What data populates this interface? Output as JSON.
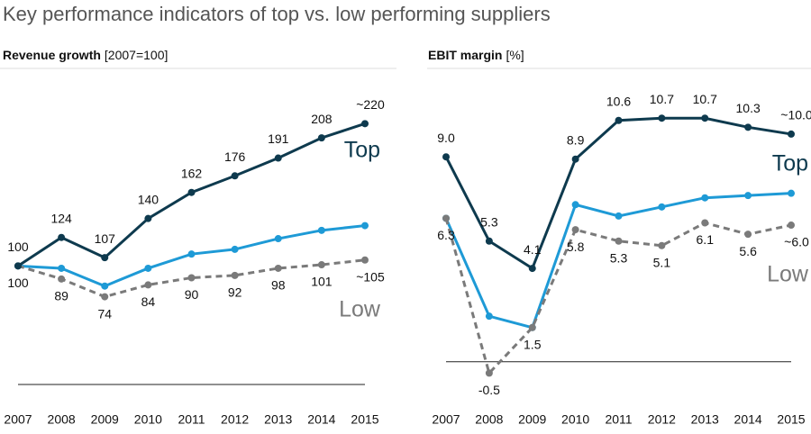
{
  "title": "Key performance indicators of top vs. low performing suppliers",
  "chart_data": [
    {
      "type": "line",
      "title": "Revenue growth",
      "title_unit": "[2007=100]",
      "categories": [
        "2007",
        "2008",
        "2009",
        "2010",
        "2011",
        "2012",
        "2013",
        "2014",
        "2015"
      ],
      "ylim": [
        0,
        240
      ],
      "baseline": 0,
      "series": [
        {
          "name": "Top",
          "color": "#0e3a4e",
          "values": [
            100,
            124,
            107,
            140,
            162,
            176,
            191,
            208,
            220
          ],
          "value_labels": [
            "100",
            "124",
            "107",
            "140",
            "162",
            "176",
            "191",
            "208",
            "~220"
          ]
        },
        {
          "color": "#1e9ad6",
          "values": [
            100,
            98,
            83,
            98,
            110,
            114,
            123,
            130,
            134
          ]
        },
        {
          "name": "Low",
          "color": "#7a7a7a",
          "dashed": true,
          "values": [
            100,
            89,
            74,
            84,
            90,
            92,
            98,
            101,
            105
          ],
          "value_labels": [
            "100",
            "89",
            "74",
            "84",
            "90",
            "92",
            "98",
            "101",
            "~105"
          ]
        }
      ]
    },
    {
      "type": "line",
      "title": "EBIT margin",
      "title_unit": "[%]",
      "categories": [
        "2007",
        "2008",
        "2009",
        "2010",
        "2011",
        "2012",
        "2013",
        "2014",
        "2015"
      ],
      "ylim": [
        -1,
        11.5
      ],
      "baseline": 0,
      "series": [
        {
          "name": "Top",
          "color": "#0e3a4e",
          "values": [
            9.0,
            5.3,
            4.1,
            8.9,
            10.6,
            10.7,
            10.7,
            10.3,
            10.0
          ],
          "value_labels": [
            "9.0",
            "5.3",
            "4.1",
            "8.9",
            "10.6",
            "10.7",
            "10.7",
            "10.3",
            "~10.0"
          ]
        },
        {
          "color": "#1e9ad6",
          "values": [
            6.3,
            2.0,
            1.5,
            6.9,
            6.4,
            6.8,
            7.2,
            7.3,
            7.4
          ]
        },
        {
          "name": "Low",
          "color": "#7a7a7a",
          "dashed": true,
          "values": [
            6.3,
            -0.5,
            1.5,
            5.8,
            5.3,
            5.1,
            6.1,
            5.6,
            6.0
          ],
          "value_labels": [
            "6.3",
            "-0.5",
            "1.5",
            "5.8",
            "5.3",
            "5.1",
            "6.1",
            "5.6",
            "~6.0"
          ]
        }
      ]
    }
  ]
}
